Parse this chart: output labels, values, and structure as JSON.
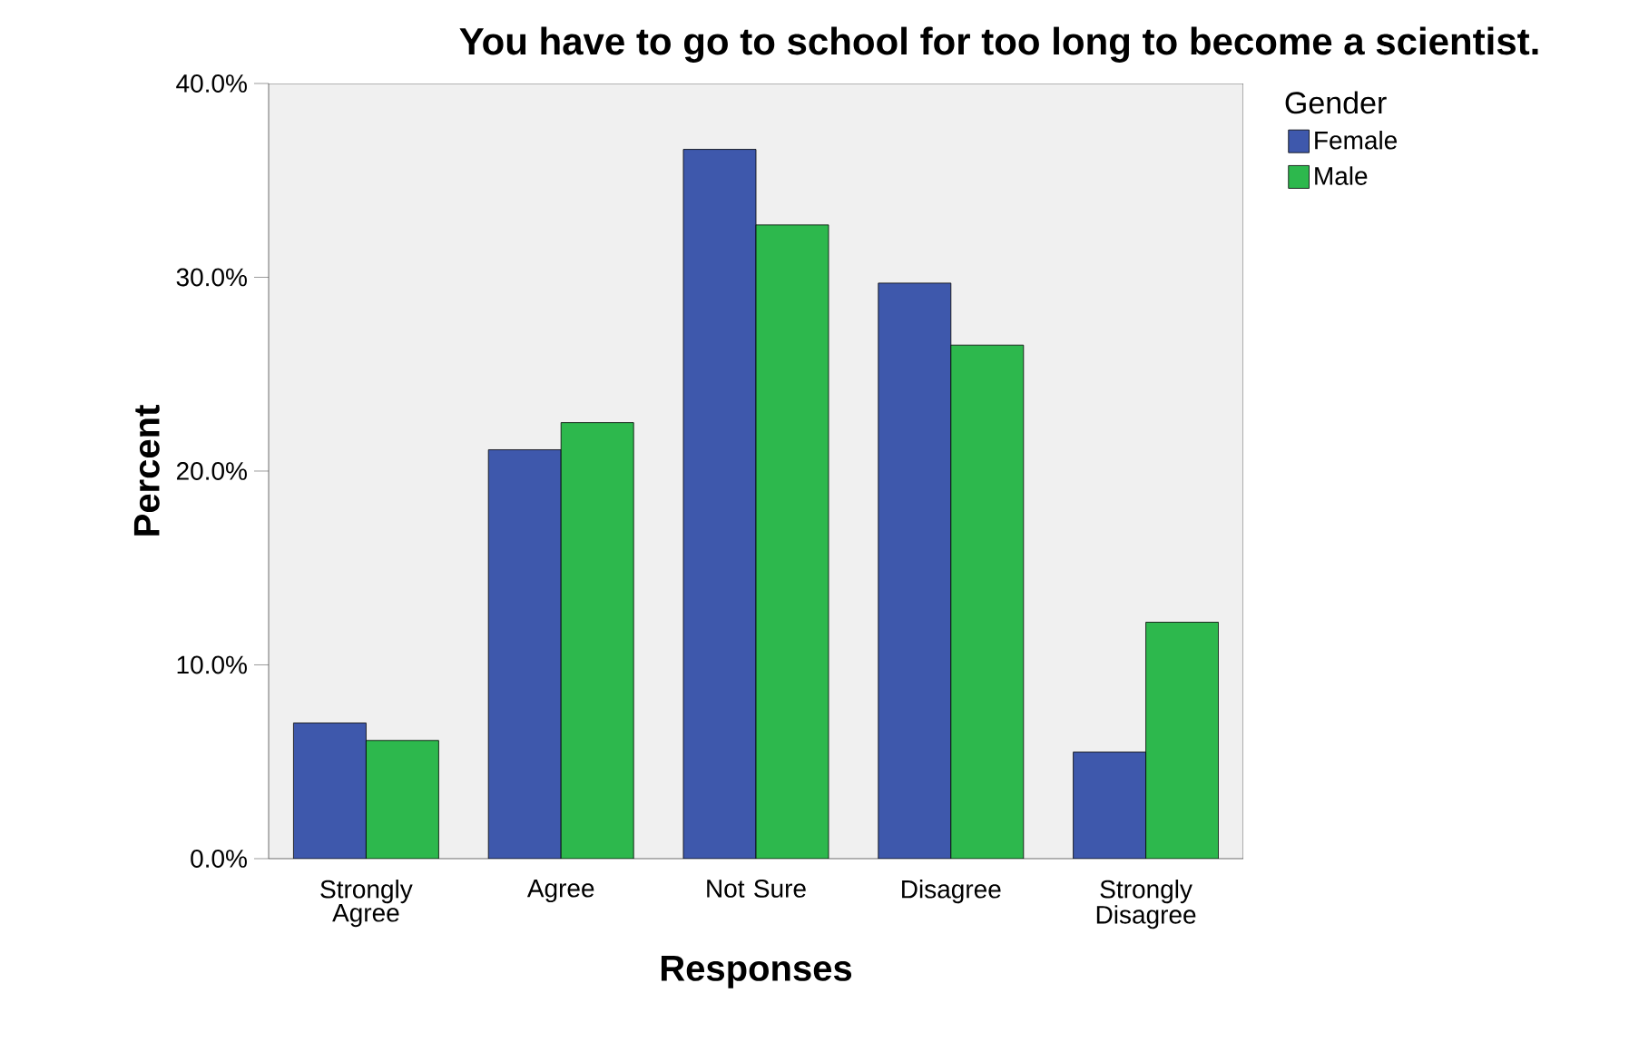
{
  "chart_data": {
    "type": "bar",
    "title": "You have to go to school for too long to become a scientist.",
    "xlabel": "Responses",
    "ylabel": "Percent",
    "legend_title": "Gender",
    "categories": [
      "Strongly Agree",
      "Agree",
      "Not Sure",
      "Disagree",
      "Strongly Disagree"
    ],
    "series": [
      {
        "name": "Female",
        "color": "#3e58ac",
        "values": [
          7.0,
          21.1,
          36.6,
          29.7,
          5.5
        ]
      },
      {
        "name": "Male",
        "color": "#2db84d",
        "values": [
          6.1,
          22.5,
          32.7,
          26.5,
          12.2
        ]
      }
    ],
    "ylim": [
      0,
      40
    ],
    "yticks": [
      {
        "value": 0,
        "label": "0.0%"
      },
      {
        "value": 10,
        "label": "10.0%"
      },
      {
        "value": 20,
        "label": "20.0%"
      },
      {
        "value": 30,
        "label": "30.0%"
      },
      {
        "value": 40,
        "label": "40.0%"
      }
    ],
    "grid": false,
    "legend": "top right"
  }
}
